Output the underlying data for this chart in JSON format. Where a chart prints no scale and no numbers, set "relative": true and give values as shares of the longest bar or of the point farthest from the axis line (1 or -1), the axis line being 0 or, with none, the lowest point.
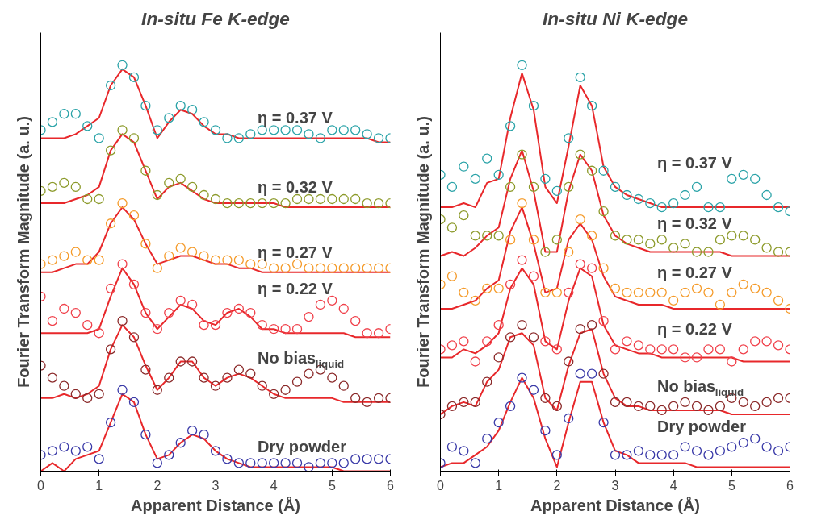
{
  "chart_data": [
    {
      "type": "scatter",
      "title": "In-situ Fe K-edge",
      "xlabel": "Apparent Distance (Å)",
      "ylabel": "Fourier Transform Magnitude (a. u.)",
      "relative": true,
      "xlim": [
        0,
        6
      ],
      "xticks": [
        0,
        1,
        2,
        3,
        4,
        5,
        6
      ],
      "grid": false,
      "tick_labels": "x",
      "x": [
        0,
        0.2,
        0.4,
        0.6,
        0.8,
        1.0,
        1.2,
        1.4,
        1.6,
        1.8,
        2.0,
        2.2,
        2.4,
        2.6,
        2.8,
        3.0,
        3.2,
        3.4,
        3.6,
        3.8,
        4.0,
        4.2,
        4.4,
        4.6,
        4.8,
        5.0,
        5.2,
        5.4,
        5.6,
        5.8,
        6.0
      ],
      "series": [
        {
          "name": "η = 0.37 V",
          "color": "#2aa3a8",
          "marker": "circle",
          "values": [
            0.84,
            0.86,
            0.88,
            0.88,
            0.85,
            0.82,
            0.95,
            1.0,
            0.97,
            0.9,
            0.84,
            0.87,
            0.9,
            0.89,
            0.86,
            0.84,
            0.82,
            0.82,
            0.83,
            0.84,
            0.84,
            0.84,
            0.84,
            0.83,
            0.82,
            0.84,
            0.84,
            0.84,
            0.83,
            0.82,
            0.82
          ]
        },
        {
          "type": "line",
          "color": "#e8282b",
          "marker": "none",
          "values": [
            0.82,
            0.82,
            0.82,
            0.83,
            0.85,
            0.87,
            0.95,
            0.99,
            0.97,
            0.9,
            0.82,
            0.86,
            0.89,
            0.88,
            0.85,
            0.83,
            0.83,
            0.82,
            0.82,
            0.82,
            0.82,
            0.82,
            0.82,
            0.82,
            0.82,
            0.82,
            0.82,
            0.82,
            0.82,
            0.81,
            0.81
          ]
        },
        {
          "name": "η = 0.32 V",
          "color": "#8c9a2a",
          "marker": "circle",
          "values": [
            0.69,
            0.7,
            0.71,
            0.7,
            0.67,
            0.67,
            0.79,
            0.84,
            0.82,
            0.74,
            0.68,
            0.71,
            0.72,
            0.7,
            0.68,
            0.67,
            0.66,
            0.66,
            0.66,
            0.66,
            0.66,
            0.66,
            0.67,
            0.67,
            0.67,
            0.67,
            0.67,
            0.67,
            0.66,
            0.66,
            0.66
          ]
        },
        {
          "type": "line",
          "color": "#e8282b",
          "marker": "none",
          "values": [
            0.66,
            0.66,
            0.66,
            0.67,
            0.68,
            0.7,
            0.79,
            0.83,
            0.81,
            0.74,
            0.67,
            0.7,
            0.71,
            0.69,
            0.67,
            0.66,
            0.66,
            0.66,
            0.66,
            0.66,
            0.66,
            0.65,
            0.65,
            0.65,
            0.65,
            0.65,
            0.65,
            0.65,
            0.65,
            0.65,
            0.65
          ]
        },
        {
          "name": "η = 0.27 V",
          "color": "#f59b2a",
          "marker": "circle",
          "values": [
            0.51,
            0.52,
            0.53,
            0.54,
            0.52,
            0.52,
            0.61,
            0.66,
            0.63,
            0.56,
            0.5,
            0.53,
            0.55,
            0.54,
            0.53,
            0.52,
            0.52,
            0.52,
            0.51,
            0.51,
            0.5,
            0.5,
            0.51,
            0.5,
            0.5,
            0.5,
            0.5,
            0.5,
            0.5,
            0.5,
            0.5
          ]
        },
        {
          "type": "line",
          "color": "#e8282b",
          "marker": "none",
          "values": [
            0.49,
            0.49,
            0.5,
            0.51,
            0.51,
            0.54,
            0.61,
            0.65,
            0.62,
            0.56,
            0.51,
            0.52,
            0.53,
            0.53,
            0.52,
            0.51,
            0.51,
            0.5,
            0.5,
            0.49,
            0.49,
            0.49,
            0.49,
            0.49,
            0.49,
            0.49,
            0.49,
            0.49,
            0.49,
            0.49,
            0.49
          ]
        },
        {
          "name": "η = 0.22 V",
          "color": "#f0404a",
          "marker": "circle",
          "values": [
            0.43,
            0.37,
            0.4,
            0.39,
            0.36,
            0.34,
            0.45,
            0.51,
            0.46,
            0.39,
            0.35,
            0.39,
            0.42,
            0.41,
            0.36,
            0.36,
            0.39,
            0.4,
            0.39,
            0.36,
            0.35,
            0.35,
            0.35,
            0.38,
            0.41,
            0.42,
            0.4,
            0.37,
            0.34,
            0.34,
            0.35
          ]
        },
        {
          "type": "line",
          "color": "#e8282b",
          "marker": "none",
          "values": [
            0.34,
            0.34,
            0.34,
            0.34,
            0.34,
            0.35,
            0.43,
            0.5,
            0.46,
            0.39,
            0.35,
            0.38,
            0.41,
            0.4,
            0.37,
            0.36,
            0.39,
            0.4,
            0.38,
            0.35,
            0.35,
            0.34,
            0.34,
            0.34,
            0.34,
            0.34,
            0.34,
            0.33,
            0.33,
            0.33,
            0.33
          ]
        },
        {
          "name": "No bias$_{liquid}$",
          "color": "#8b2a2a",
          "marker": "circle",
          "values": [
            0.26,
            0.23,
            0.21,
            0.19,
            0.18,
            0.19,
            0.3,
            0.37,
            0.33,
            0.25,
            0.2,
            0.23,
            0.27,
            0.27,
            0.23,
            0.21,
            0.23,
            0.25,
            0.24,
            0.21,
            0.19,
            0.2,
            0.22,
            0.24,
            0.25,
            0.23,
            0.21,
            0.18,
            0.17,
            0.18,
            0.18
          ]
        },
        {
          "type": "line",
          "color": "#e8282b",
          "marker": "none",
          "values": [
            0.18,
            0.18,
            0.19,
            0.18,
            0.19,
            0.21,
            0.3,
            0.36,
            0.33,
            0.26,
            0.2,
            0.23,
            0.27,
            0.27,
            0.23,
            0.21,
            0.23,
            0.24,
            0.23,
            0.21,
            0.19,
            0.18,
            0.18,
            0.18,
            0.18,
            0.18,
            0.17,
            0.17,
            0.17,
            0.17,
            0.17
          ]
        },
        {
          "name": "Dry powder",
          "color": "#3a3aa8",
          "marker": "circle",
          "values": [
            0.04,
            0.05,
            0.06,
            0.05,
            0.06,
            0.03,
            0.12,
            0.2,
            0.17,
            0.09,
            0.02,
            0.04,
            0.07,
            0.1,
            0.09,
            0.05,
            0.03,
            0.02,
            0.02,
            0.02,
            0.02,
            0.02,
            0.02,
            0.01,
            0.02,
            0.02,
            0.02,
            0.03,
            0.03,
            0.03,
            0.03
          ]
        },
        {
          "type": "line",
          "color": "#e8282b",
          "marker": "none",
          "values": [
            0.0,
            0.02,
            0.0,
            0.03,
            0.04,
            0.05,
            0.12,
            0.19,
            0.17,
            0.09,
            0.03,
            0.04,
            0.07,
            0.09,
            0.08,
            0.05,
            0.03,
            0.02,
            0.01,
            0.01,
            0.01,
            0.01,
            0.01,
            0.01,
            0.01,
            0.01,
            0.0,
            0.0,
            0.0,
            0.0,
            0.0
          ]
        }
      ]
    },
    {
      "type": "scatter",
      "title": "In-situ Ni K-edge",
      "xlabel": "Apparent Distance (Å)",
      "ylabel": "Fourier Transform Magnitude (a. u.)",
      "relative": true,
      "xlim": [
        0,
        6
      ],
      "xticks": [
        0,
        1,
        2,
        3,
        4,
        5,
        6
      ],
      "grid": false,
      "tick_labels": "x",
      "x": [
        0,
        0.2,
        0.4,
        0.6,
        0.8,
        1.0,
        1.2,
        1.4,
        1.6,
        1.8,
        2.0,
        2.2,
        2.4,
        2.6,
        2.8,
        3.0,
        3.2,
        3.4,
        3.6,
        3.8,
        4.0,
        4.2,
        4.4,
        4.6,
        4.8,
        5.0,
        5.2,
        5.4,
        5.6,
        5.8,
        6.0
      ],
      "series": [
        {
          "name": "η = 0.37 V",
          "color": "#2aa3a8",
          "marker": "circle",
          "values": [
            0.73,
            0.7,
            0.75,
            0.72,
            0.77,
            0.73,
            0.85,
            1.0,
            0.9,
            0.72,
            0.69,
            0.82,
            0.97,
            0.9,
            0.74,
            0.7,
            0.68,
            0.67,
            0.66,
            0.65,
            0.66,
            0.68,
            0.7,
            0.65,
            0.65,
            0.72,
            0.73,
            0.72,
            0.68,
            0.65,
            0.64
          ]
        },
        {
          "type": "line",
          "color": "#e8282b",
          "marker": "none",
          "values": [
            0.65,
            0.65,
            0.66,
            0.65,
            0.71,
            0.72,
            0.87,
            0.98,
            0.89,
            0.7,
            0.66,
            0.8,
            0.95,
            0.9,
            0.75,
            0.7,
            0.68,
            0.67,
            0.66,
            0.65,
            0.65,
            0.65,
            0.65,
            0.65,
            0.65,
            0.65,
            0.65,
            0.65,
            0.65,
            0.65,
            0.65
          ]
        },
        {
          "name": "η = 0.32 V",
          "color": "#8c9a2a",
          "marker": "circle",
          "values": [
            0.62,
            0.6,
            0.63,
            0.58,
            0.58,
            0.58,
            0.7,
            0.78,
            0.7,
            0.54,
            0.57,
            0.7,
            0.78,
            0.74,
            0.64,
            0.58,
            0.57,
            0.57,
            0.56,
            0.57,
            0.55,
            0.56,
            0.54,
            0.54,
            0.57,
            0.58,
            0.58,
            0.57,
            0.55,
            0.54,
            0.54
          ]
        },
        {
          "type": "line",
          "color": "#e8282b",
          "marker": "none",
          "values": [
            0.53,
            0.54,
            0.53,
            0.55,
            0.58,
            0.6,
            0.72,
            0.79,
            0.69,
            0.54,
            0.54,
            0.69,
            0.78,
            0.74,
            0.63,
            0.58,
            0.56,
            0.55,
            0.54,
            0.54,
            0.54,
            0.54,
            0.54,
            0.54,
            0.54,
            0.53,
            0.53,
            0.53,
            0.53,
            0.53,
            0.53
          ]
        },
        {
          "name": "η = 0.27 V",
          "color": "#f59b2a",
          "marker": "circle",
          "values": [
            0.46,
            0.48,
            0.44,
            0.42,
            0.45,
            0.45,
            0.57,
            0.66,
            0.57,
            0.44,
            0.44,
            0.54,
            0.62,
            0.58,
            0.5,
            0.45,
            0.44,
            0.44,
            0.44,
            0.44,
            0.42,
            0.44,
            0.45,
            0.44,
            0.41,
            0.44,
            0.46,
            0.45,
            0.44,
            0.42,
            0.4
          ]
        },
        {
          "type": "line",
          "color": "#e8282b",
          "marker": "none",
          "values": [
            0.4,
            0.4,
            0.41,
            0.42,
            0.45,
            0.47,
            0.59,
            0.65,
            0.56,
            0.44,
            0.45,
            0.57,
            0.61,
            0.57,
            0.48,
            0.43,
            0.42,
            0.41,
            0.41,
            0.41,
            0.4,
            0.4,
            0.4,
            0.4,
            0.4,
            0.4,
            0.4,
            0.4,
            0.4,
            0.4,
            0.4
          ]
        },
        {
          "name": "η = 0.22 V",
          "color": "#f0404a",
          "marker": "circle",
          "values": [
            0.3,
            0.31,
            0.32,
            0.27,
            0.32,
            0.36,
            0.46,
            0.52,
            0.48,
            0.32,
            0.3,
            0.44,
            0.51,
            0.5,
            0.37,
            0.3,
            0.32,
            0.31,
            0.3,
            0.3,
            0.3,
            0.28,
            0.28,
            0.3,
            0.3,
            0.27,
            0.3,
            0.32,
            0.32,
            0.31,
            0.3
          ]
        },
        {
          "type": "line",
          "color": "#e8282b",
          "marker": "none",
          "values": [
            0.28,
            0.28,
            0.3,
            0.29,
            0.31,
            0.34,
            0.45,
            0.5,
            0.46,
            0.32,
            0.3,
            0.42,
            0.5,
            0.48,
            0.36,
            0.31,
            0.3,
            0.29,
            0.29,
            0.28,
            0.28,
            0.28,
            0.28,
            0.28,
            0.28,
            0.28,
            0.27,
            0.27,
            0.27,
            0.27,
            0.27
          ]
        },
        {
          "name": "No bias$_{liquid}$",
          "color": "#8b2a2a",
          "marker": "circle",
          "values": [
            0.14,
            0.16,
            0.17,
            0.17,
            0.22,
            0.28,
            0.33,
            0.36,
            0.33,
            0.18,
            0.16,
            0.27,
            0.35,
            0.36,
            0.24,
            0.17,
            0.17,
            0.16,
            0.16,
            0.15,
            0.16,
            0.17,
            0.16,
            0.15,
            0.16,
            0.18,
            0.17,
            0.16,
            0.17,
            0.18,
            0.18
          ]
        },
        {
          "type": "line",
          "color": "#e8282b",
          "marker": "none",
          "values": [
            0.14,
            0.16,
            0.17,
            0.16,
            0.22,
            0.25,
            0.33,
            0.34,
            0.31,
            0.18,
            0.15,
            0.26,
            0.34,
            0.35,
            0.24,
            0.18,
            0.16,
            0.16,
            0.15,
            0.15,
            0.15,
            0.15,
            0.15,
            0.15,
            0.15,
            0.14,
            0.14,
            0.14,
            0.14,
            0.14,
            0.14
          ]
        },
        {
          "name": "Dry powder",
          "color": "#3a3aa8",
          "marker": "circle",
          "values": [
            0.02,
            0.06,
            0.05,
            0.02,
            0.08,
            0.12,
            0.16,
            0.23,
            0.2,
            0.1,
            0.04,
            0.13,
            0.24,
            0.24,
            0.12,
            0.04,
            0.04,
            0.05,
            0.04,
            0.04,
            0.04,
            0.06,
            0.05,
            0.04,
            0.05,
            0.06,
            0.07,
            0.08,
            0.06,
            0.05,
            0.06
          ]
        },
        {
          "type": "line",
          "color": "#e8282b",
          "marker": "none",
          "values": [
            0.01,
            0.02,
            0.02,
            0.04,
            0.06,
            0.1,
            0.17,
            0.23,
            0.18,
            0.08,
            0.01,
            0.12,
            0.22,
            0.22,
            0.12,
            0.05,
            0.04,
            0.02,
            0.02,
            0.02,
            0.02,
            0.02,
            0.01,
            0.01,
            0.01,
            0.01,
            0.01,
            0.01,
            0.01,
            0.01,
            0.01
          ]
        }
      ]
    }
  ]
}
